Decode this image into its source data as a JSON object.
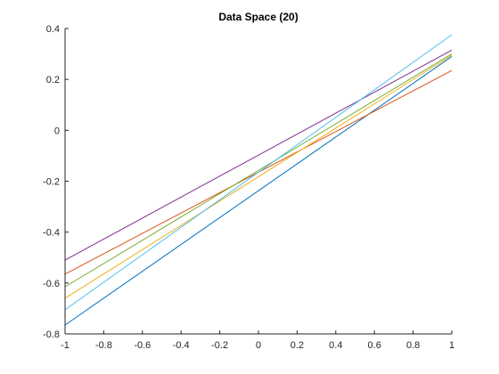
{
  "chart_data": {
    "type": "line",
    "title": "Data Space (20)",
    "xlabel": "",
    "ylabel": "",
    "xlim": [
      -1,
      1
    ],
    "ylim": [
      -0.8,
      0.4
    ],
    "xticks": [
      -1,
      -0.8,
      -0.6,
      -0.4,
      -0.2,
      0,
      0.2,
      0.4,
      0.6,
      0.8,
      1
    ],
    "xtick_labels": [
      "-1",
      "-0.8",
      "-0.6",
      "-0.4",
      "-0.2",
      "0",
      "0.2",
      "0.4",
      "0.6",
      "0.8",
      "1"
    ],
    "yticks": [
      -0.8,
      -0.6,
      -0.4,
      -0.2,
      0,
      0.2,
      0.4
    ],
    "ytick_labels": [
      "-0.8",
      "-0.6",
      "-0.4",
      "-0.2",
      "0",
      "0.2",
      "0.4"
    ],
    "grid": false,
    "box": "off",
    "series": [
      {
        "x": [
          -1,
          1
        ],
        "values": [
          -0.765,
          0.29
        ],
        "color": "#0072BD"
      },
      {
        "x": [
          -1,
          1
        ],
        "values": [
          -0.565,
          0.235
        ],
        "color": "#D95319"
      },
      {
        "x": [
          -1,
          1
        ],
        "values": [
          -0.66,
          0.295
        ],
        "color": "#EDB120"
      },
      {
        "x": [
          -1,
          1
        ],
        "values": [
          -0.51,
          0.315
        ],
        "color": "#7E2F8E"
      },
      {
        "x": [
          -1,
          1
        ],
        "values": [
          -0.615,
          0.3
        ],
        "color": "#77AC30"
      },
      {
        "x": [
          -1,
          1
        ],
        "values": [
          -0.705,
          0.375
        ],
        "color": "#4DBEEE"
      }
    ]
  }
}
